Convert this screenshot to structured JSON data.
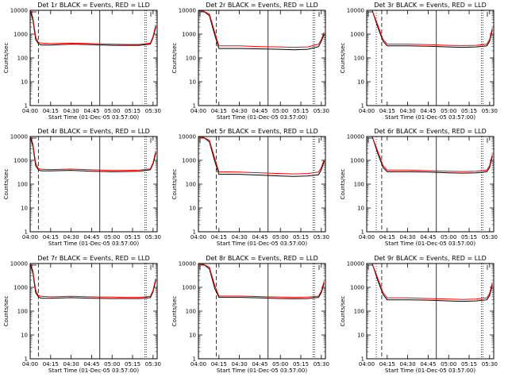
{
  "chart_data": [
    {
      "type": "line",
      "title": "Det 1r BLACK = Events, RED = LLD",
      "xlabel": "Start Time (01-Dec-05 03:57:00)",
      "ylabel": "Counts/sec",
      "yscale": "log",
      "ylim": [
        1,
        10000
      ],
      "xlim_minutes_after_start": [
        3,
        96
      ],
      "x_tick_labels": [
        "04:00",
        "04:15",
        "04:30",
        "04:45",
        "05:00",
        "05:15",
        "05:30"
      ],
      "y_tick_labels": [
        "1",
        "10",
        "100",
        "1000",
        "10000"
      ],
      "vertical_lines": [
        {
          "time": "04:06",
          "style": "dashed"
        },
        {
          "time": "04:51",
          "style": "solid"
        },
        {
          "time": "05:24",
          "style": "dotted"
        },
        {
          "time": "05:25",
          "style": "dotted"
        }
      ],
      "series": [
        {
          "color": "#000000",
          "x": [
            "04:00",
            "04:02",
            "04:04",
            "04:06",
            "04:08",
            "04:15",
            "04:30",
            "04:45",
            "05:00",
            "05:10",
            "05:20",
            "05:28",
            "05:30",
            "05:32"
          ],
          "values": [
            10000,
            4000,
            600,
            400,
            350,
            350,
            380,
            360,
            340,
            340,
            340,
            380,
            700,
            2000
          ]
        },
        {
          "color": "#ff0000",
          "x": [
            "04:00",
            "04:02",
            "04:04",
            "04:06",
            "04:08",
            "04:15",
            "04:30",
            "04:45",
            "05:00",
            "05:10",
            "05:20",
            "05:28",
            "05:30",
            "05:32"
          ],
          "values": [
            10000,
            5000,
            800,
            450,
            420,
            400,
            420,
            400,
            380,
            370,
            370,
            420,
            800,
            2500
          ]
        }
      ]
    },
    {
      "type": "line",
      "title": "Det 2r BLACK = Events, RED = LLD",
      "xlabel": "Start Time (01-Dec-05 03:57:00)",
      "ylabel": "Counts/sec",
      "yscale": "log",
      "ylim": [
        1,
        10000
      ],
      "xlim_minutes_after_start": [
        3,
        96
      ],
      "x_tick_labels": [
        "04:00",
        "04:15",
        "04:30",
        "04:45",
        "05:00",
        "05:15",
        "05:30"
      ],
      "y_tick_labels": [
        "1",
        "10",
        "100",
        "1000",
        "10000"
      ],
      "vertical_lines": [
        {
          "time": "04:13",
          "style": "dashed"
        },
        {
          "time": "04:51",
          "style": "solid"
        },
        {
          "time": "05:24",
          "style": "dotted"
        },
        {
          "time": "05:25",
          "style": "dotted"
        }
      ],
      "series": [
        {
          "color": "#000000",
          "x": [
            "04:00",
            "04:04",
            "04:08",
            "04:12",
            "04:15",
            "04:30",
            "04:45",
            "05:00",
            "05:10",
            "05:20",
            "05:28",
            "05:30",
            "05:32"
          ],
          "values": [
            10000,
            9000,
            6000,
            900,
            250,
            250,
            240,
            230,
            220,
            230,
            300,
            500,
            1000
          ]
        },
        {
          "color": "#ff0000",
          "x": [
            "04:00",
            "04:04",
            "04:08",
            "04:12",
            "04:15",
            "04:30",
            "04:45",
            "05:00",
            "05:10",
            "05:20",
            "05:28",
            "05:30",
            "05:32"
          ],
          "values": [
            10000,
            9000,
            7000,
            1200,
            320,
            320,
            300,
            290,
            280,
            290,
            380,
            600,
            1200
          ]
        }
      ]
    },
    {
      "type": "line",
      "title": "Det 3r BLACK = Events, RED = LLD",
      "xlabel": "Start Time (01-Dec-05 03:57:00)",
      "ylabel": "Counts/sec",
      "yscale": "log",
      "ylim": [
        1,
        10000
      ],
      "xlim_minutes_after_start": [
        3,
        96
      ],
      "x_tick_labels": [
        "04:00",
        "04:15",
        "04:30",
        "04:45",
        "05:00",
        "05:15",
        "05:30"
      ],
      "y_tick_labels": [
        "1",
        "10",
        "100",
        "1000",
        "10000"
      ],
      "vertical_lines": [
        {
          "time": "04:07",
          "style": "dotted"
        },
        {
          "time": "04:11",
          "style": "dashed"
        },
        {
          "time": "04:51",
          "style": "solid"
        },
        {
          "time": "05:24",
          "style": "dotted"
        },
        {
          "time": "05:25",
          "style": "dotted"
        }
      ],
      "series": [
        {
          "color": "#000000",
          "x": [
            "04:00",
            "04:04",
            "04:08",
            "04:12",
            "04:15",
            "04:30",
            "04:45",
            "05:00",
            "05:10",
            "05:20",
            "05:28",
            "05:30",
            "05:32"
          ],
          "values": [
            10000,
            10000,
            2000,
            500,
            320,
            320,
            310,
            290,
            280,
            290,
            320,
            500,
            1500
          ]
        },
        {
          "color": "#ff0000",
          "x": [
            "04:00",
            "04:04",
            "04:08",
            "04:12",
            "04:15",
            "04:30",
            "04:45",
            "05:00",
            "05:10",
            "05:20",
            "05:28",
            "05:30",
            "05:32"
          ],
          "values": [
            10000,
            10000,
            2500,
            600,
            380,
            380,
            360,
            340,
            330,
            340,
            380,
            600,
            1800
          ]
        }
      ]
    },
    {
      "type": "line",
      "title": "Det 4r BLACK = Events, RED = LLD",
      "xlabel": "Start Time (01-Dec-05 03:57:00)",
      "ylabel": "Counts/sec",
      "yscale": "log",
      "ylim": [
        1,
        10000
      ],
      "xlim_minutes_after_start": [
        3,
        96
      ],
      "x_tick_labels": [
        "04:00",
        "04:15",
        "04:30",
        "04:45",
        "05:00",
        "05:15",
        "05:30"
      ],
      "y_tick_labels": [
        "1",
        "10",
        "100",
        "1000",
        "10000"
      ],
      "vertical_lines": [
        {
          "time": "04:06",
          "style": "dashed"
        },
        {
          "time": "04:51",
          "style": "solid"
        },
        {
          "time": "05:24",
          "style": "dotted"
        },
        {
          "time": "05:25",
          "style": "dotted"
        }
      ],
      "series": [
        {
          "color": "#000000",
          "x": [
            "04:00",
            "04:02",
            "04:04",
            "04:06",
            "04:08",
            "04:15",
            "04:30",
            "04:45",
            "05:00",
            "05:10",
            "05:20",
            "05:28",
            "05:30",
            "05:32"
          ],
          "values": [
            10000,
            4000,
            600,
            400,
            360,
            360,
            380,
            350,
            330,
            340,
            350,
            400,
            700,
            2000
          ]
        },
        {
          "color": "#ff0000",
          "x": [
            "04:00",
            "04:02",
            "04:04",
            "04:06",
            "04:08",
            "04:15",
            "04:30",
            "04:45",
            "05:00",
            "05:10",
            "05:20",
            "05:28",
            "05:30",
            "05:32"
          ],
          "values": [
            10000,
            5000,
            800,
            450,
            420,
            410,
            430,
            400,
            380,
            380,
            390,
            440,
            800,
            2500
          ]
        }
      ]
    },
    {
      "type": "line",
      "title": "Det 5r BLACK = Events, RED = LLD",
      "xlabel": "Start Time (01-Dec-05 03:57:00)",
      "ylabel": "Counts/sec",
      "yscale": "log",
      "ylim": [
        1,
        10000
      ],
      "xlim_minutes_after_start": [
        3,
        96
      ],
      "x_tick_labels": [
        "04:00",
        "04:15",
        "04:30",
        "04:45",
        "05:00",
        "05:15",
        "05:30"
      ],
      "y_tick_labels": [
        "1",
        "10",
        "100",
        "1000",
        "10000"
      ],
      "vertical_lines": [
        {
          "time": "04:13",
          "style": "dashed"
        },
        {
          "time": "04:51",
          "style": "solid"
        },
        {
          "time": "05:24",
          "style": "dotted"
        },
        {
          "time": "05:25",
          "style": "dotted"
        }
      ],
      "series": [
        {
          "color": "#000000",
          "x": [
            "04:00",
            "04:04",
            "04:08",
            "04:12",
            "04:15",
            "04:30",
            "04:45",
            "05:00",
            "05:10",
            "05:20",
            "05:28",
            "05:30",
            "05:32"
          ],
          "values": [
            10000,
            9000,
            6000,
            900,
            260,
            260,
            240,
            220,
            210,
            220,
            250,
            400,
            900
          ]
        },
        {
          "color": "#ff0000",
          "x": [
            "04:00",
            "04:04",
            "04:08",
            "04:12",
            "04:15",
            "04:30",
            "04:45",
            "05:00",
            "05:10",
            "05:20",
            "05:28",
            "05:30",
            "05:32"
          ],
          "values": [
            10000,
            9000,
            7000,
            1200,
            330,
            320,
            300,
            280,
            270,
            280,
            320,
            500,
            1100
          ]
        }
      ]
    },
    {
      "type": "line",
      "title": "Det 6r BLACK = Events, RED = LLD",
      "xlabel": "Start Time (01-Dec-05 03:57:00)",
      "ylabel": "Counts/sec",
      "yscale": "log",
      "ylim": [
        1,
        10000
      ],
      "xlim_minutes_after_start": [
        3,
        96
      ],
      "x_tick_labels": [
        "04:00",
        "04:15",
        "04:30",
        "04:45",
        "05:00",
        "05:15",
        "05:30"
      ],
      "y_tick_labels": [
        "1",
        "10",
        "100",
        "1000",
        "10000"
      ],
      "vertical_lines": [
        {
          "time": "04:07",
          "style": "dotted"
        },
        {
          "time": "04:11",
          "style": "dashed"
        },
        {
          "time": "04:51",
          "style": "solid"
        },
        {
          "time": "05:24",
          "style": "dotted"
        },
        {
          "time": "05:25",
          "style": "dotted"
        }
      ],
      "series": [
        {
          "color": "#000000",
          "x": [
            "04:00",
            "04:04",
            "04:08",
            "04:12",
            "04:15",
            "04:30",
            "04:45",
            "05:00",
            "05:10",
            "05:20",
            "05:28",
            "05:30",
            "05:32"
          ],
          "values": [
            10000,
            10000,
            2000,
            500,
            330,
            330,
            320,
            300,
            290,
            300,
            330,
            500,
            1500
          ]
        },
        {
          "color": "#ff0000",
          "x": [
            "04:00",
            "04:04",
            "04:08",
            "04:12",
            "04:15",
            "04:30",
            "04:45",
            "05:00",
            "05:10",
            "05:20",
            "05:28",
            "05:30",
            "05:32"
          ],
          "values": [
            10000,
            10000,
            2500,
            600,
            390,
            390,
            370,
            350,
            340,
            350,
            390,
            600,
            1800
          ]
        }
      ]
    },
    {
      "type": "line",
      "title": "Det 7r BLACK = Events, RED = LLD",
      "xlabel": "Start Time (01-Dec-05 03:57:00)",
      "ylabel": "Counts/sec",
      "yscale": "log",
      "ylim": [
        1,
        10000
      ],
      "xlim_minutes_after_start": [
        3,
        96
      ],
      "x_tick_labels": [
        "04:00",
        "04:15",
        "04:30",
        "04:45",
        "05:00",
        "05:15",
        "05:30"
      ],
      "y_tick_labels": [
        "1",
        "10",
        "100",
        "1000",
        "10000"
      ],
      "vertical_lines": [
        {
          "time": "04:06",
          "style": "dashed"
        },
        {
          "time": "04:51",
          "style": "solid"
        },
        {
          "time": "05:24",
          "style": "dotted"
        },
        {
          "time": "05:25",
          "style": "dotted"
        }
      ],
      "series": [
        {
          "color": "#000000",
          "x": [
            "04:00",
            "04:02",
            "04:04",
            "04:06",
            "04:08",
            "04:15",
            "04:30",
            "04:45",
            "05:00",
            "05:10",
            "05:20",
            "05:28",
            "05:30",
            "05:32"
          ],
          "values": [
            10000,
            4000,
            600,
            400,
            350,
            350,
            370,
            350,
            340,
            340,
            340,
            370,
            650,
            2000
          ]
        },
        {
          "color": "#ff0000",
          "x": [
            "04:00",
            "04:02",
            "04:04",
            "04:06",
            "04:08",
            "04:15",
            "04:30",
            "04:45",
            "05:00",
            "05:10",
            "05:20",
            "05:28",
            "05:30",
            "05:32"
          ],
          "values": [
            10000,
            5000,
            800,
            450,
            420,
            400,
            420,
            400,
            390,
            380,
            380,
            420,
            750,
            2400
          ]
        }
      ]
    },
    {
      "type": "line",
      "title": "Det 8r BLACK = Events, RED = LLD",
      "xlabel": "Start Time (01-Dec-05 03:57:00)",
      "ylabel": "Counts/sec",
      "yscale": "log",
      "ylim": [
        1,
        10000
      ],
      "xlim_minutes_after_start": [
        3,
        96
      ],
      "x_tick_labels": [
        "04:00",
        "04:15",
        "04:30",
        "04:45",
        "05:00",
        "05:15",
        "05:30"
      ],
      "y_tick_labels": [
        "1",
        "10",
        "100",
        "1000",
        "10000"
      ],
      "vertical_lines": [
        {
          "time": "04:13",
          "style": "dashed"
        },
        {
          "time": "04:51",
          "style": "solid"
        },
        {
          "time": "05:24",
          "style": "dotted"
        },
        {
          "time": "05:25",
          "style": "dotted"
        }
      ],
      "series": [
        {
          "color": "#000000",
          "x": [
            "04:00",
            "04:04",
            "04:08",
            "04:12",
            "04:15",
            "04:30",
            "04:45",
            "05:00",
            "05:10",
            "05:20",
            "05:28",
            "05:30",
            "05:32"
          ],
          "values": [
            10000,
            9000,
            6000,
            900,
            380,
            380,
            360,
            340,
            330,
            340,
            380,
            600,
            1500
          ]
        },
        {
          "color": "#ff0000",
          "x": [
            "04:00",
            "04:04",
            "04:08",
            "04:12",
            "04:15",
            "04:30",
            "04:45",
            "05:00",
            "05:10",
            "05:20",
            "05:28",
            "05:30",
            "05:32"
          ],
          "values": [
            10000,
            9000,
            7000,
            1200,
            430,
            430,
            410,
            390,
            380,
            390,
            430,
            700,
            1800
          ]
        }
      ]
    },
    {
      "type": "line",
      "title": "Det 9r BLACK = Events, RED = LLD",
      "xlabel": "Start Time (01-Dec-05 03:57:00)",
      "ylabel": "Counts/sec",
      "yscale": "log",
      "ylim": [
        1,
        10000
      ],
      "xlim_minutes_after_start": [
        3,
        96
      ],
      "x_tick_labels": [
        "04:00",
        "04:15",
        "04:30",
        "04:45",
        "05:00",
        "05:15",
        "05:30"
      ],
      "y_tick_labels": [
        "1",
        "10",
        "100",
        "1000",
        "10000"
      ],
      "vertical_lines": [
        {
          "time": "04:07",
          "style": "dotted"
        },
        {
          "time": "04:11",
          "style": "dashed"
        },
        {
          "time": "04:51",
          "style": "solid"
        },
        {
          "time": "05:24",
          "style": "dotted"
        },
        {
          "time": "05:25",
          "style": "dotted"
        }
      ],
      "series": [
        {
          "color": "#000000",
          "x": [
            "04:00",
            "04:04",
            "04:08",
            "04:12",
            "04:15",
            "04:30",
            "04:45",
            "05:00",
            "05:10",
            "05:20",
            "05:28",
            "05:30",
            "05:32"
          ],
          "values": [
            10000,
            10000,
            2000,
            500,
            300,
            300,
            290,
            270,
            260,
            270,
            300,
            450,
            1300
          ]
        },
        {
          "color": "#ff0000",
          "x": [
            "04:00",
            "04:04",
            "04:08",
            "04:12",
            "04:15",
            "04:30",
            "04:45",
            "05:00",
            "05:10",
            "05:20",
            "05:28",
            "05:30",
            "05:32"
          ],
          "values": [
            10000,
            10000,
            2500,
            600,
            360,
            360,
            340,
            320,
            310,
            320,
            360,
            550,
            1600
          ]
        }
      ]
    }
  ]
}
